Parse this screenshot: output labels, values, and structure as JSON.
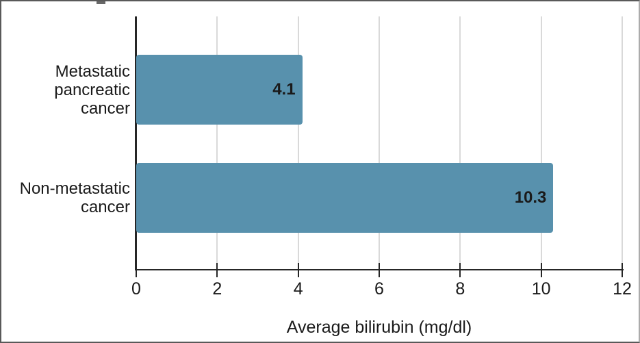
{
  "frame": {
    "background_color": "#ffffff",
    "border_color": "#595959"
  },
  "chart_data": {
    "type": "bar",
    "orientation": "horizontal",
    "title": "",
    "categories": [
      "Metastatic pancreatic cancer",
      "Non-metastatic cancer"
    ],
    "category_lines": [
      [
        "Metastatic",
        "pancreatic cancer"
      ],
      [
        "Non-metastatic",
        "cancer"
      ]
    ],
    "values": [
      4.1,
      10.3
    ],
    "value_labels": [
      "4.1",
      "10.3"
    ],
    "xlabel": "Average bilirubin (mg/dl)",
    "ylabel": "",
    "xlim": [
      0,
      12
    ],
    "xticks": [
      0,
      2,
      4,
      6,
      8,
      10,
      12
    ],
    "grid": "vertical gridlines on",
    "legend": "none",
    "bar_color": "#5891ad",
    "gridline_color": "#d9d9d9",
    "axis_color": "#262626",
    "text_color": "#1a1a1a"
  }
}
